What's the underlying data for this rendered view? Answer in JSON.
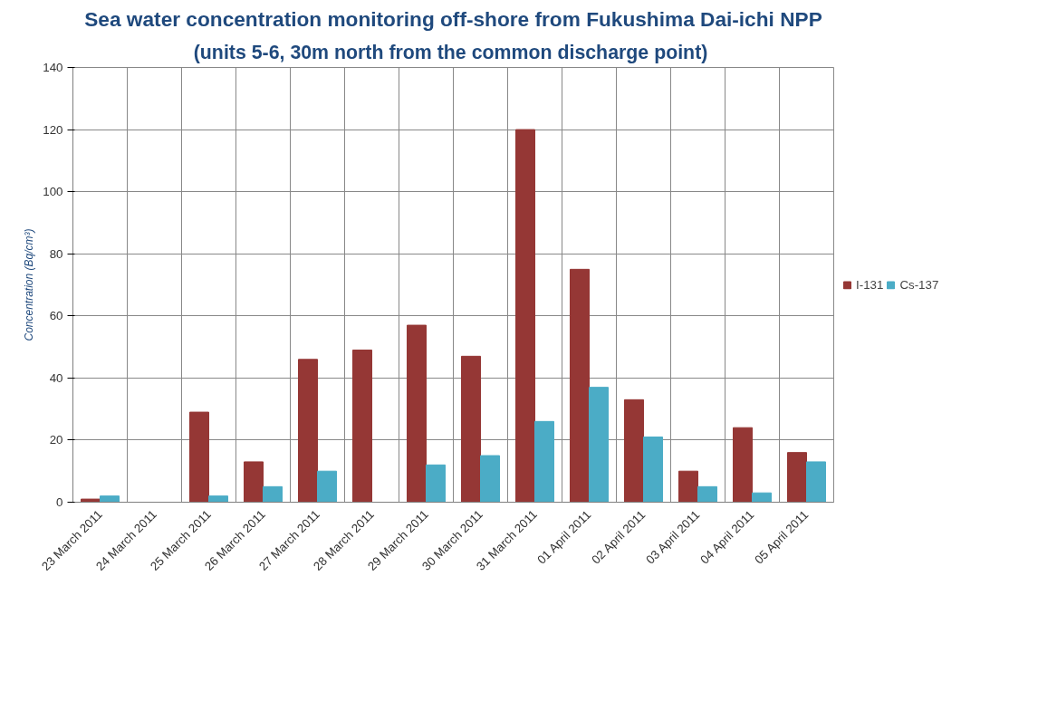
{
  "chart_data": {
    "type": "bar",
    "title": "Sea water concentration monitoring off-shore from Fukushima Dai-ichi NPP",
    "subtitle": "(units 5-6,  30m north from the common discharge point)",
    "ylabel": "Concentration (Bq/cm³)",
    "categories": [
      "23 March 2011",
      "24 March 2011",
      "25 March 2011",
      "26 March 2011",
      "27 March 2011",
      "28 March 2011",
      "29 March 2011",
      "30 March 2011",
      "31 March 2011",
      "01 April 2011",
      "02 April 2011",
      "03 April 2011",
      "04 April 2011",
      "05 April 2011"
    ],
    "series": [
      {
        "name": "I-131",
        "color": "#953735",
        "values": [
          1,
          null,
          29,
          13,
          46,
          49,
          57,
          47,
          120,
          75,
          33,
          10,
          24,
          16
        ]
      },
      {
        "name": "Cs-137",
        "color": "#4bacc6",
        "values": [
          2,
          null,
          2,
          5,
          10,
          null,
          12,
          15,
          26,
          37,
          21,
          5,
          3,
          13
        ]
      }
    ],
    "ylim": [
      0,
      140
    ],
    "yticks": [
      0,
      20,
      40,
      60,
      80,
      100,
      120,
      140
    ],
    "grid": true,
    "legend": "right"
  }
}
